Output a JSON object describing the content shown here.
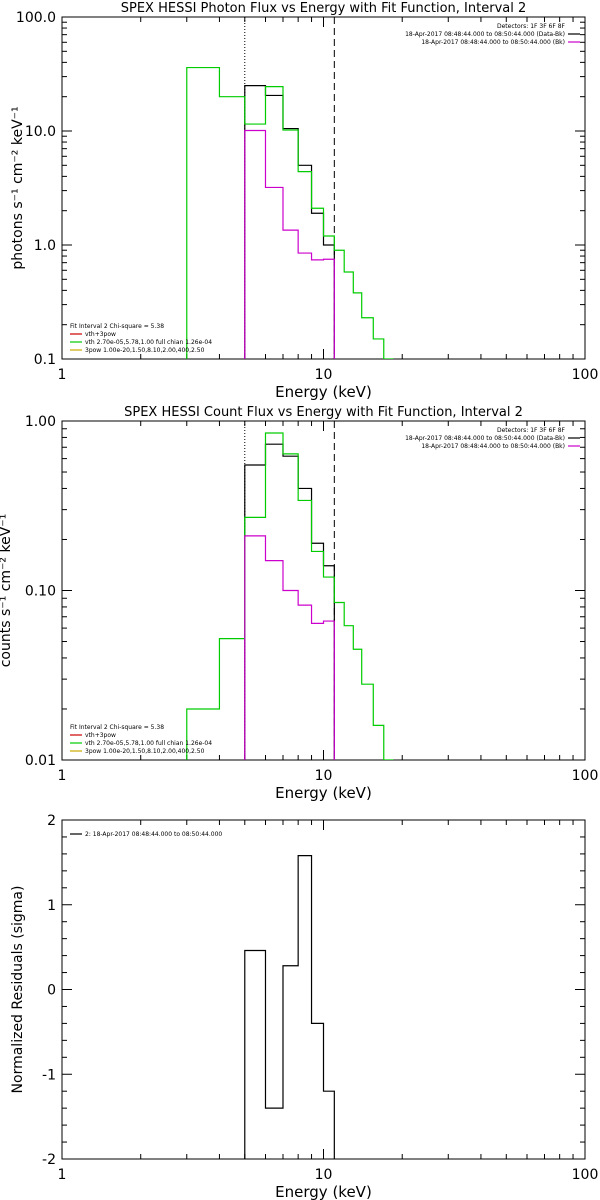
{
  "chart_data": [
    {
      "type": "line",
      "title": "SPEX HESSI Photon Flux vs Energy with Fit Function, Interval 2",
      "xlabel": "Energy (keV)",
      "ylabel": "photons s⁻¹ cm⁻² keV⁻¹",
      "x_scale": "log",
      "y_scale": "log",
      "xlim": [
        1,
        100
      ],
      "ylim": [
        0.1,
        100
      ],
      "x_ticks": [
        "1",
        "10",
        "100"
      ],
      "y_ticks": [
        "0.1",
        "1.0",
        "10.0",
        "100.0"
      ],
      "vlines": [
        {
          "x": 5.0,
          "style": "dotted"
        },
        {
          "x": 11.0,
          "style": "dashed"
        }
      ],
      "legend_right": {
        "lines": [
          {
            "text": "Detectors: 1F 3F 6F 8F",
            "color": "#000000"
          },
          {
            "text": "18-Apr-2017 08:48:44.000 to 08:50:44.000 (Data-Bk)",
            "color": "#000000"
          },
          {
            "text": "18-Apr-2017 08:48:44.000 to 08:50:44.000 (Bk)",
            "color": "#cc00cc"
          }
        ]
      },
      "legend_left": {
        "lines": [
          {
            "text": "Fit Interval 2   Chi-square = 5.38",
            "color": "#000000"
          },
          {
            "text": "vth+3pow",
            "color": "#cc0000"
          },
          {
            "text": "vth 2.70e-05,5.78,1.00  full chian 1.26e-04",
            "color": "#00cc00"
          },
          {
            "text": "3pow 1.00e-20,1.50,8.10,2.00,400,2.50",
            "color": "#ccaa00"
          }
        ]
      },
      "series": [
        {
          "color": "#000000",
          "edges": [
            5.0,
            6.0,
            7.0,
            8.0,
            9.0,
            10.0,
            11.0
          ],
          "values": [
            25,
            20.5,
            10.5,
            5.0,
            1.9,
            1.0
          ]
        },
        {
          "color": "#00cc00",
          "edges": [
            3.0,
            4.0,
            5.0,
            6.0,
            7.0,
            8.0,
            9.0,
            10.0,
            11.0,
            12.0,
            13.0,
            14.0,
            15.5,
            17.0,
            18.5
          ],
          "values": [
            36,
            20,
            11.5,
            24.5,
            10.2,
            4.4,
            2.1,
            1.2,
            0.9,
            0.58,
            0.38,
            0.23,
            0.15,
            0.1
          ]
        },
        {
          "color": "#cc00cc",
          "edges": [
            5.0,
            6.0,
            7.0,
            8.0,
            9.0,
            10.0,
            11.0
          ],
          "values": [
            10.1,
            3.2,
            1.35,
            0.85,
            0.74,
            0.75
          ]
        }
      ]
    },
    {
      "type": "line",
      "title": "SPEX HESSI Count Flux vs Energy with Fit Function, Interval 2",
      "xlabel": "Energy (keV)",
      "ylabel": "counts s⁻¹ cm⁻² keV⁻¹",
      "x_scale": "log",
      "y_scale": "log",
      "xlim": [
        1,
        100
      ],
      "ylim": [
        0.01,
        1
      ],
      "x_ticks": [
        "1",
        "10",
        "100"
      ],
      "y_ticks": [
        "0.01",
        "0.10",
        "1.00"
      ],
      "vlines": [
        {
          "x": 5.0,
          "style": "dotted"
        },
        {
          "x": 11.0,
          "style": "dashed"
        }
      ],
      "legend_right": {
        "lines": [
          {
            "text": "Detectors: 1F 3F 6F 8F",
            "color": "#000000"
          },
          {
            "text": "18-Apr-2017 08:48:44.000 to 08:50:44.000 (Data-Bk)",
            "color": "#000000"
          },
          {
            "text": "18-Apr-2017 08:48:44.000 to 08:50:44.000 (Bk)",
            "color": "#cc00cc"
          }
        ]
      },
      "legend_left": {
        "lines": [
          {
            "text": "Fit Interval 2   Chi-square = 5.38",
            "color": "#000000"
          },
          {
            "text": "vth+3pow",
            "color": "#cc0000"
          },
          {
            "text": "vth 2.70e-05,5.78,1.00  full chian 1.26e-04",
            "color": "#00cc00"
          },
          {
            "text": "3pow 1.00e-20,1.50,8.10,2.00,400,2.50",
            "color": "#ccaa00"
          }
        ]
      },
      "series": [
        {
          "color": "#000000",
          "edges": [
            5.0,
            6.0,
            7.0,
            8.0,
            9.0,
            10.0,
            11.0
          ],
          "values": [
            0.55,
            0.73,
            0.62,
            0.4,
            0.19,
            0.14
          ]
        },
        {
          "color": "#00cc00",
          "edges": [
            3.0,
            4.0,
            5.0,
            6.0,
            7.0,
            8.0,
            9.0,
            10.0,
            11.0,
            12.0,
            13.0,
            14.0,
            15.5,
            17.0,
            18.5
          ],
          "values": [
            0.02,
            0.052,
            0.27,
            0.85,
            0.64,
            0.34,
            0.17,
            0.12,
            0.085,
            0.062,
            0.045,
            0.028,
            0.016,
            0.01
          ]
        },
        {
          "color": "#cc00cc",
          "edges": [
            5.0,
            6.0,
            7.0,
            8.0,
            9.0,
            10.0,
            11.0
          ],
          "values": [
            0.21,
            0.15,
            0.1,
            0.082,
            0.064,
            0.066
          ]
        }
      ]
    },
    {
      "type": "line",
      "title": "",
      "xlabel": "Energy (keV)",
      "ylabel": "Normalized Residuals (sigma)",
      "x_scale": "log",
      "y_scale": "linear",
      "xlim": [
        1,
        100
      ],
      "ylim": [
        -2,
        2
      ],
      "x_ticks": [
        "1",
        "10",
        "100"
      ],
      "y_ticks": [
        "-2",
        "-1",
        "0",
        "1",
        "2"
      ],
      "legend_left": {
        "lines": [
          {
            "text": "2: 18-Apr-2017 08:48:44.000 to 08:50:44.000",
            "color": "#000000"
          }
        ]
      },
      "series": [
        {
          "color": "#000000",
          "edges": [
            5.0,
            6.0,
            7.0,
            8.0,
            9.0,
            10.0,
            11.0
          ],
          "values": [
            0.46,
            -1.4,
            0.28,
            1.58,
            -0.4,
            -1.2
          ],
          "baseline": -2
        }
      ]
    }
  ]
}
